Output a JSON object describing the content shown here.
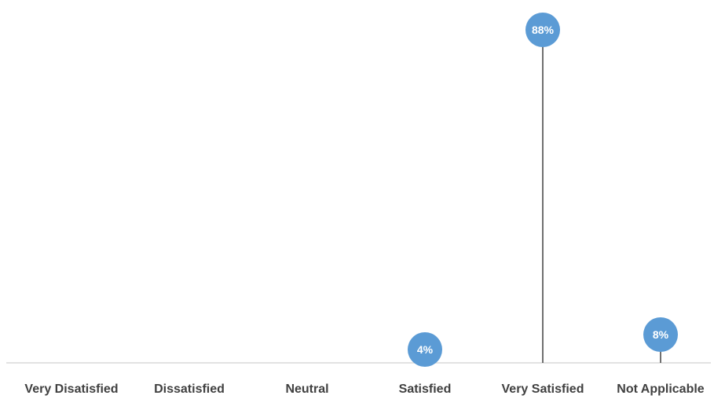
{
  "chart_data": {
    "type": "lollipop",
    "categories": [
      "Very Disatisfied",
      "Dissatisfied",
      "Neutral",
      "Satisfied",
      "Very Satisfied",
      "Not Applicable"
    ],
    "values": [
      0,
      0,
      0,
      4,
      88,
      8
    ],
    "data_labels": [
      "",
      "",
      "",
      "4%",
      "88%",
      "8%"
    ],
    "ylim": [
      0,
      100
    ],
    "grid": false,
    "legend": "none",
    "colors": {
      "marker": "#5b9bd5",
      "stem": "#404040",
      "baseline": "#d9d9d9",
      "label_text": "#404040",
      "marker_text": "#ffffff"
    }
  }
}
